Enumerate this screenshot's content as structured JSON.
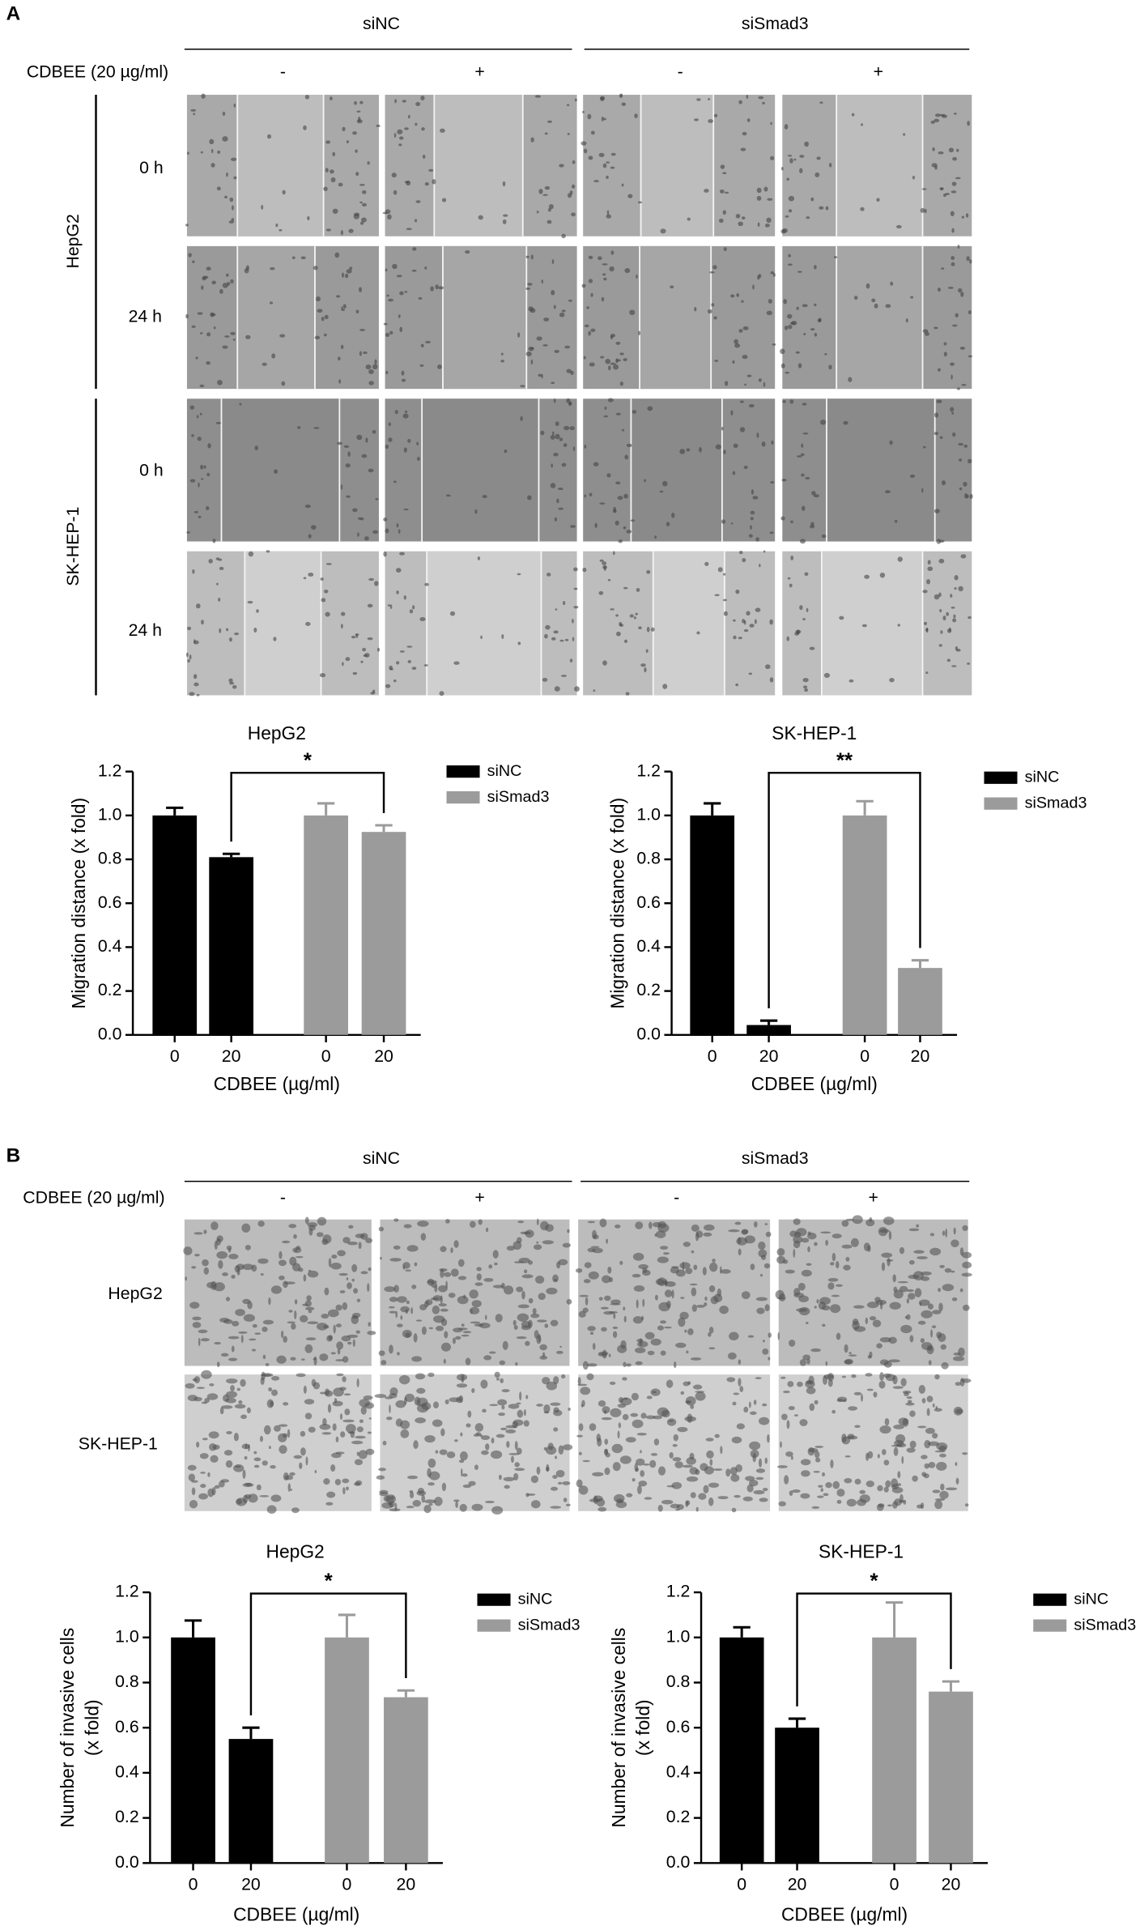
{
  "figure": {
    "panel_a": {
      "label": "A",
      "groups": [
        "siNC",
        "siSmad3"
      ],
      "treatment": "CDBEE (20 µg/ml)",
      "signs": [
        "-",
        "+",
        "-",
        "+"
      ],
      "cell_lines": [
        "HepG2",
        "SK-HEP-1"
      ],
      "times": [
        "0 h",
        "24 h"
      ]
    },
    "panel_b": {
      "label": "B",
      "groups": [
        "siNC",
        "siSmad3"
      ],
      "treatment": "CDBEE (20 µg/ml)",
      "signs": [
        "-",
        "+",
        "-",
        "+"
      ],
      "cell_lines": [
        "HepG2",
        "SK-HEP-1"
      ]
    }
  },
  "chart_data": [
    {
      "type": "bar",
      "title": "HepG2",
      "categories": [
        "0",
        "20",
        "0",
        "20"
      ],
      "series": [
        {
          "name": "siNC",
          "color": "#000000",
          "values": [
            1.0,
            0.81,
            null,
            null
          ],
          "errors": [
            0.035,
            0.015,
            null,
            null
          ]
        },
        {
          "name": "siSmad3",
          "color": "#9b9b9b",
          "values": [
            null,
            null,
            1.0,
            0.925
          ],
          "errors": [
            null,
            null,
            0.055,
            0.03
          ]
        }
      ],
      "ylim": [
        0,
        1.2
      ],
      "yticks": [
        {
          "value": 0,
          "label": "0.0"
        },
        0.2,
        0.4,
        0.6,
        0.8,
        {
          "value": 1,
          "label": "1.0"
        },
        1.2
      ],
      "ylabel": [
        "Migration distance (x fold)"
      ],
      "xlabel": "CDBEE (µg/ml)",
      "significance": "*"
    },
    {
      "type": "bar",
      "title": "SK-HEP-1",
      "categories": [
        "0",
        "20",
        "0",
        "20"
      ],
      "series": [
        {
          "name": "siNC",
          "color": "#000000",
          "values": [
            1.0,
            0.045,
            null,
            null
          ],
          "errors": [
            0.055,
            0.02,
            null,
            null
          ]
        },
        {
          "name": "siSmad3",
          "color": "#9b9b9b",
          "values": [
            null,
            null,
            1.0,
            0.305
          ],
          "errors": [
            null,
            null,
            0.065,
            0.035
          ]
        }
      ],
      "ylim": [
        0,
        1.2
      ],
      "yticks": [
        {
          "value": 0,
          "label": "0.0"
        },
        0.2,
        0.4,
        0.6,
        0.8,
        {
          "value": 1,
          "label": "1.0"
        },
        1.2
      ],
      "ylabel": [
        "Migration distance (x fold)"
      ],
      "xlabel": "CDBEE (µg/ml)",
      "significance": "**"
    },
    {
      "type": "bar",
      "title": "HepG2",
      "categories": [
        "0",
        "20",
        "0",
        "20"
      ],
      "series": [
        {
          "name": "siNC",
          "color": "#000000",
          "values": [
            1.0,
            0.55,
            null,
            null
          ],
          "errors": [
            0.075,
            0.05,
            null,
            null
          ]
        },
        {
          "name": "siSmad3",
          "color": "#9b9b9b",
          "values": [
            null,
            null,
            1.0,
            0.735
          ],
          "errors": [
            null,
            null,
            0.1,
            0.03
          ]
        }
      ],
      "ylim": [
        0,
        1.2
      ],
      "yticks": [
        {
          "value": 0,
          "label": "0.0"
        },
        0.2,
        0.4,
        0.6,
        0.8,
        {
          "value": 1,
          "label": "1.0"
        },
        1.2
      ],
      "ylabel": [
        "Number of invasive cells",
        "(x fold)"
      ],
      "xlabel": "CDBEE (µg/ml)",
      "significance": "*"
    },
    {
      "type": "bar",
      "title": "SK-HEP-1",
      "categories": [
        "0",
        "20",
        "0",
        "20"
      ],
      "series": [
        {
          "name": "siNC",
          "color": "#000000",
          "values": [
            1.0,
            0.6,
            null,
            null
          ],
          "errors": [
            0.045,
            0.04,
            null,
            null
          ]
        },
        {
          "name": "siSmad3",
          "color": "#9b9b9b",
          "values": [
            null,
            null,
            1.0,
            0.76
          ],
          "errors": [
            null,
            null,
            0.155,
            0.045
          ]
        }
      ],
      "ylim": [
        0,
        1.2
      ],
      "yticks": [
        {
          "value": 0,
          "label": "0.0"
        },
        0.2,
        0.4,
        0.6,
        0.8,
        {
          "value": 1,
          "label": "1.0"
        },
        1.2
      ],
      "ylabel": [
        "Number of invasive cells",
        "(x fold)"
      ],
      "xlabel": "CDBEE (µg/ml)",
      "significance": "*"
    }
  ]
}
